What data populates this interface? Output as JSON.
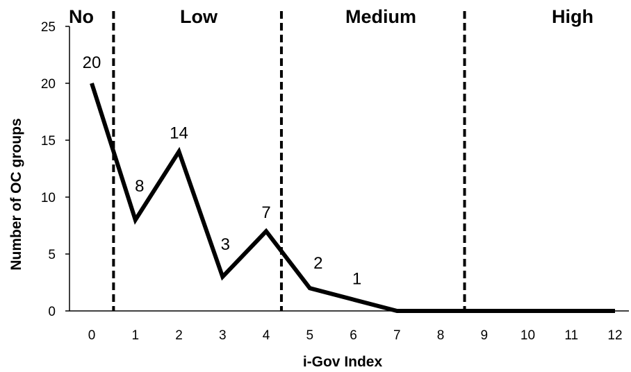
{
  "chart_data": {
    "type": "line",
    "xlabel": "i-Gov Index",
    "ylabel": "Number of OC groups",
    "x": [
      0,
      1,
      2,
      3,
      4,
      5,
      6,
      7,
      8,
      9,
      10,
      11,
      12
    ],
    "x_tick_labels": [
      "0",
      "1",
      "2",
      "3",
      "4",
      "5",
      "6",
      "7",
      "8",
      "9",
      "10",
      "11",
      "12"
    ],
    "y_tick_labels": [
      "0",
      "5",
      "10",
      "15",
      "20",
      "25"
    ],
    "ylim": [
      0,
      25
    ],
    "grid": false,
    "series": [
      {
        "values": [
          20,
          8,
          14,
          3,
          7,
          2,
          1,
          0,
          0,
          0,
          0,
          0,
          0
        ],
        "color": "#000000"
      }
    ],
    "data_labels": [
      {
        "x": 0,
        "text": "20"
      },
      {
        "x": 1,
        "text": "8"
      },
      {
        "x": 2,
        "text": "14"
      },
      {
        "x": 3,
        "text": "3"
      },
      {
        "x": 4,
        "text": "7"
      },
      {
        "x": 5,
        "text": "2"
      },
      {
        "x": 6,
        "text": "1"
      }
    ],
    "regions": [
      {
        "label": "No",
        "from": -0.5,
        "to": 0.5
      },
      {
        "label": "Low",
        "from": 0.5,
        "to": 4.35
      },
      {
        "label": "Medium",
        "from": 4.35,
        "to": 8.55
      },
      {
        "label": "High",
        "from": 8.55,
        "to": 12.5
      }
    ],
    "dividers": [
      0.5,
      4.35,
      8.55
    ]
  }
}
